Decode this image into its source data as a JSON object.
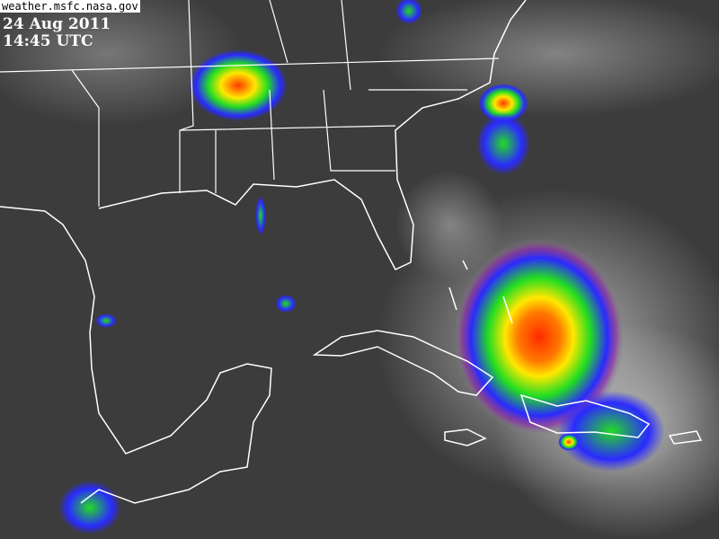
{
  "source": "weather.msfc.nasa.gov",
  "date": "24 Aug 2011",
  "time": "14:45 UTC",
  "colors": {
    "background": "#3a3a3a",
    "coastline": "#ffffff",
    "storm_core": "#ff2a00",
    "storm_mid": "#ffe800",
    "storm_outer": "#22dd22",
    "storm_edge": "#2a2aff"
  }
}
